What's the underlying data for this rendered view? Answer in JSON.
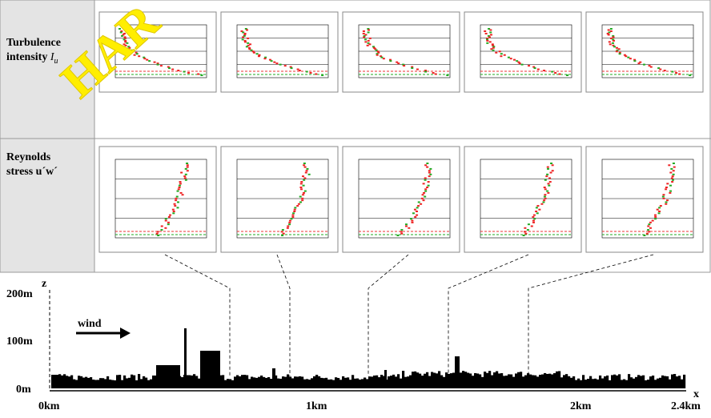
{
  "watermark": "HAR",
  "rows": [
    {
      "line1": "Turbulence",
      "line2": "intensity",
      "symbol": "I",
      "subscript": "u"
    },
    {
      "line1": "Reynolds",
      "line2": "stress u´w´"
    }
  ],
  "profile": {
    "z_axis": "z",
    "z_labels": [
      "200m",
      "100m",
      "0m"
    ],
    "wind": "wind",
    "x_axis": "x",
    "x_labels": [
      "0km",
      "1km",
      "2km",
      "2.4km"
    ]
  }
}
